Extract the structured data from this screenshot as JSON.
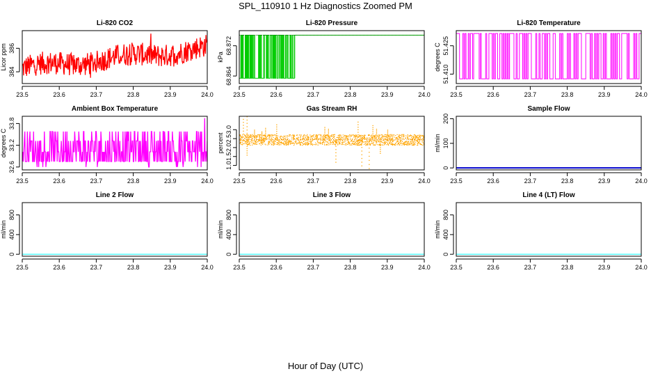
{
  "figure": {
    "title": "SPL_110910  1 Hz Diagnostics Zoomed PM",
    "xlabel": "Hour of Day (UTC)"
  },
  "chart_data": [
    {
      "type": "line",
      "title": "Li-820 CO2",
      "ylabel": "Licor ppm",
      "xlim": [
        23.5,
        24.0
      ],
      "xticks": [
        "23.5",
        "23.6",
        "23.7",
        "23.8",
        "23.9",
        "24.0"
      ],
      "ylim": [
        383.0,
        387.5
      ],
      "yticks": [
        384,
        386
      ],
      "ytick_labels": [
        "384",
        "386"
      ],
      "color": "#ff0000",
      "pattern": "noisy-trend",
      "summary": {
        "start_mean": 384.3,
        "end_mean": 386.0,
        "noise_range": 1.4
      }
    },
    {
      "type": "line",
      "title": "Li-820 Pressure",
      "ylabel": "kPa",
      "xlim": [
        23.5,
        24.0
      ],
      "xticks": [
        "23.5",
        "23.6",
        "23.7",
        "23.8",
        "23.9",
        "24.0"
      ],
      "ylim": [
        68.862,
        68.876
      ],
      "yticks": [
        68.864,
        68.872
      ],
      "ytick_labels": [
        "68.864",
        "68.872"
      ],
      "color": "#00cc00",
      "pattern": "toggle",
      "summary": {
        "high": 68.8748,
        "low": 68.8634,
        "toggle_until": 23.65
      }
    },
    {
      "type": "line",
      "title": "Li-820 Temperature",
      "ylabel": "degrees C",
      "xlim": [
        23.5,
        24.0
      ],
      "xticks": [
        "23.5",
        "23.6",
        "23.7",
        "23.8",
        "23.9",
        "24.0"
      ],
      "ylim": [
        51.405,
        51.433
      ],
      "yticks": [
        51.41,
        51.425
      ],
      "ytick_labels": [
        "51.410",
        "51.425"
      ],
      "color": "#ff00ff",
      "pattern": "toggle-full",
      "summary": {
        "high": 51.4315,
        "low": 51.4075
      }
    },
    {
      "type": "line",
      "title": "Ambient Box Temperature",
      "ylabel": "degrees C",
      "xlim": [
        23.5,
        24.0
      ],
      "xticks": [
        "23.5",
        "23.6",
        "23.7",
        "23.8",
        "23.9",
        "24.0"
      ],
      "ylim": [
        32.52,
        34.0
      ],
      "yticks": [
        32.6,
        33.2,
        33.8
      ],
      "ytick_labels": [
        "32.6",
        "33.2",
        "33.8"
      ],
      "color": "#ff00ff",
      "pattern": "step-noise",
      "summary": {
        "levels": [
          32.75,
          33.02,
          33.32,
          33.58
        ],
        "spike_max": 33.95
      }
    },
    {
      "type": "scatter",
      "title": "Gas Stream RH",
      "ylabel": "percent",
      "xlim": [
        23.5,
        24.0
      ],
      "xticks": [
        "23.5",
        "23.6",
        "23.7",
        "23.8",
        "23.9",
        "24.0"
      ],
      "ylim": [
        0.75,
        3.75
      ],
      "yticks": [
        1.0,
        1.5,
        2.0,
        2.5,
        3.0
      ],
      "ytick_labels": [
        "1.0",
        "1.5",
        "2.0",
        "2.5",
        "3.0"
      ],
      "color": "#ffa500",
      "pattern": "band",
      "summary": {
        "center": 2.45,
        "band_low": 2.15,
        "band_high": 2.75
      }
    },
    {
      "type": "line",
      "title": "Sample Flow",
      "ylabel": "ml/min",
      "xlim": [
        23.5,
        24.0
      ],
      "xticks": [
        "23.5",
        "23.6",
        "23.7",
        "23.8",
        "23.9",
        "24.0"
      ],
      "ylim": [
        -8,
        210
      ],
      "yticks": [
        0,
        100,
        200
      ],
      "ytick_labels": [
        "0",
        "100",
        "200"
      ],
      "color": "#0000cc",
      "pattern": "flat",
      "summary": {
        "value": 0
      }
    },
    {
      "type": "line",
      "title": "Line 2 Flow",
      "ylabel": "ml/min",
      "xlim": [
        23.5,
        24.0
      ],
      "xticks": [
        "23.5",
        "23.6",
        "23.7",
        "23.8",
        "23.9",
        "24.0"
      ],
      "ylim": [
        -40,
        1050
      ],
      "yticks": [
        0,
        400,
        800
      ],
      "ytick_labels": [
        "0",
        "400",
        "800"
      ],
      "color": "#00ffff",
      "pattern": "flat",
      "summary": {
        "value": 0
      }
    },
    {
      "type": "line",
      "title": "Line 3 Flow",
      "ylabel": "ml/min",
      "xlim": [
        23.5,
        24.0
      ],
      "xticks": [
        "23.5",
        "23.6",
        "23.7",
        "23.8",
        "23.9",
        "24.0"
      ],
      "ylim": [
        -40,
        1050
      ],
      "yticks": [
        0,
        400,
        800
      ],
      "ytick_labels": [
        "0",
        "400",
        "800"
      ],
      "color": "#00ffff",
      "pattern": "flat",
      "summary": {
        "value": 0
      }
    },
    {
      "type": "line",
      "title": "Line 4 (LT) Flow",
      "ylabel": "ml/min",
      "xlim": [
        23.5,
        24.0
      ],
      "xticks": [
        "23.5",
        "23.6",
        "23.7",
        "23.8",
        "23.9",
        "24.0"
      ],
      "ylim": [
        -40,
        1050
      ],
      "yticks": [
        0,
        400,
        800
      ],
      "ytick_labels": [
        "0",
        "400",
        "800"
      ],
      "color": "#00ffff",
      "pattern": "flat",
      "summary": {
        "value": 0
      }
    }
  ]
}
